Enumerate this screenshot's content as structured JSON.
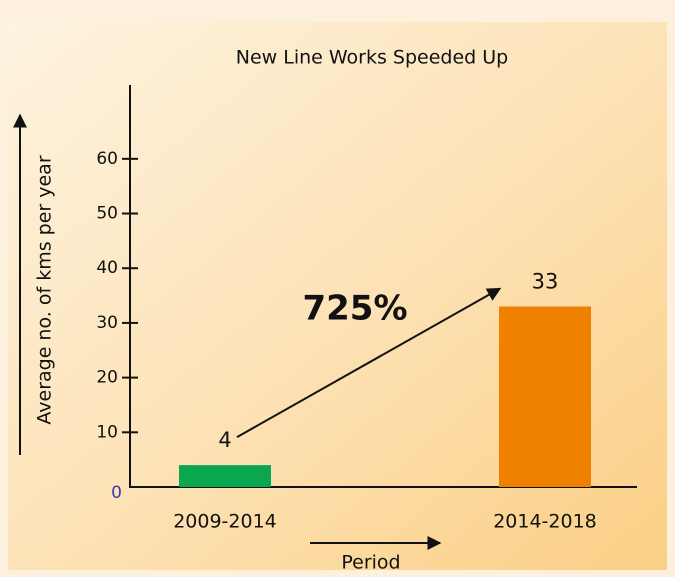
{
  "chart_data": {
    "type": "bar",
    "title": "New Line Works Speeded Up",
    "categories": [
      "2009-2014",
      "2014-2018"
    ],
    "values": [
      4,
      33
    ],
    "colors": [
      "#0aa650",
      "#f08000"
    ],
    "ylim": [
      0,
      73.5
    ],
    "yticks": [
      0,
      10,
      20,
      30,
      40,
      50,
      60
    ],
    "xlabel": "Period",
    "ylabel": "Average no. of kms per year",
    "annotation": "725%"
  }
}
